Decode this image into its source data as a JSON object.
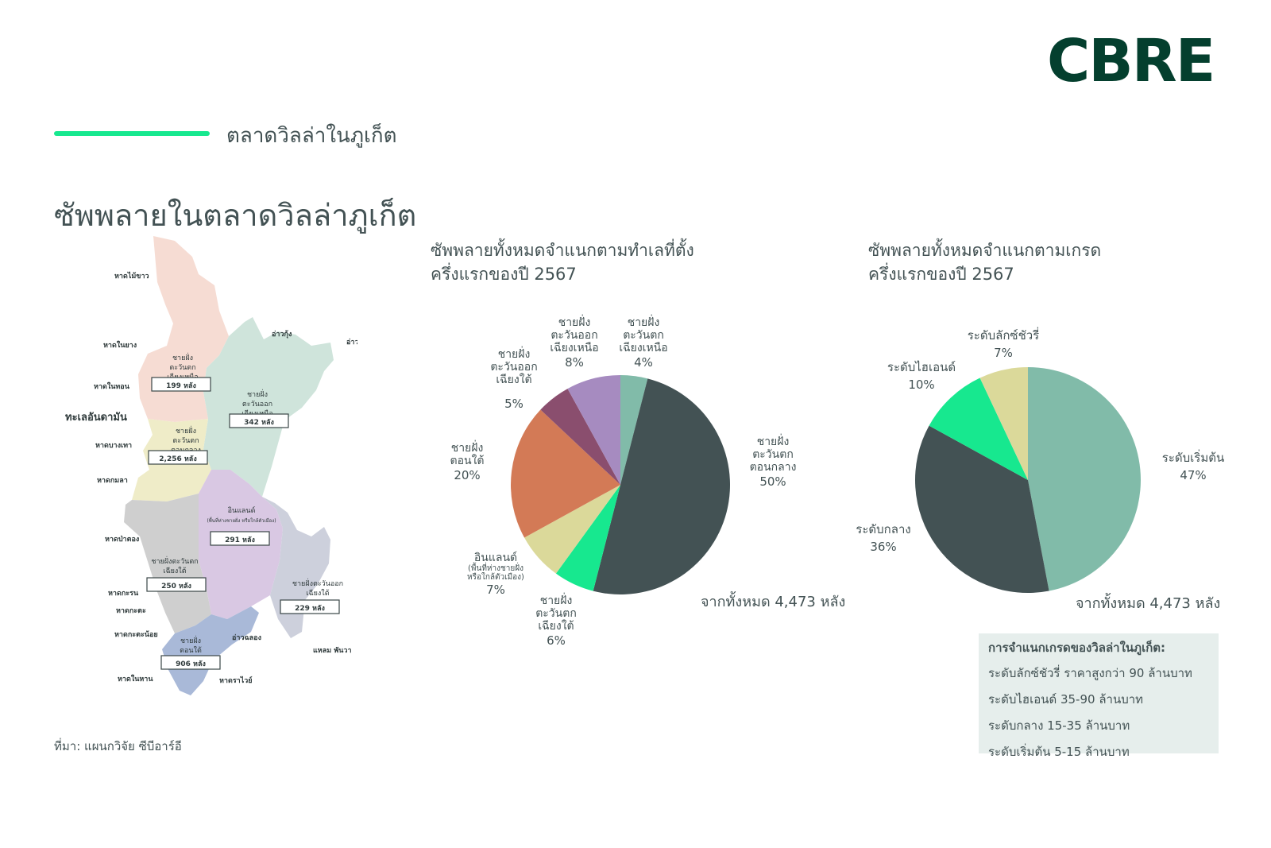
{
  "logo": "CBRE",
  "section_title": "ตลาดวิลล่าในภูเก็ต",
  "page_title": "ซัพพลายในตลาดวิลล่าภูเก็ต",
  "source": "ที่มา: แผนกวิจัย ซีบีอาร์อี",
  "map": {
    "sea_label": "ทะเลอันดามัน",
    "places": [
      "หาดไม้ขาว",
      "หาดในยาง",
      "หาดในทอน",
      "หาดบางเทา",
      "หาดกมลา",
      "หาดป่าตอง",
      "หาดกะรน",
      "หาดกะตะ",
      "หาดกะตะน้อย",
      "หาดในหาน",
      "หาดราไวย์",
      "อ่าวฉลอง",
      "แหลม พันวา",
      "อ่าวกุ้ง",
      "อ่าวปอ"
    ],
    "regions": [
      {
        "name": "ชายฝั่ง ตะวันตก เฉียงเหนือ",
        "count": "199 หลัง",
        "color": "#f6dcd3"
      },
      {
        "name": "ชายฝั่ง ตะวันออก เฉียงเหนือ",
        "count": "342 หลัง",
        "color": "#cfe4db"
      },
      {
        "name": "ชายฝั่ง ตะวันตก ตอนกลาง",
        "count": "2,256 หลัง",
        "color": "#efecc8"
      },
      {
        "name": "อินแลนด์",
        "note": "(พื้นที่ห่างชายฝั่ง หรือใกล้ตัวเมือง)",
        "count": "291 หลัง",
        "color": "#d9c8e3"
      },
      {
        "name": "ชายฝั่งตะวันตก เฉียงใต้",
        "count": "250 หลัง",
        "color": "#cfcfcf"
      },
      {
        "name": "ชายฝั่งตะวันออก เฉียงใต้",
        "count": "229 หลัง",
        "color": "#cdd0dc"
      },
      {
        "name": "ชายฝั่ง ตอนใต้",
        "count": "906 หลัง",
        "color": "#a9b9d8"
      }
    ]
  },
  "chart_data": [
    {
      "type": "pie",
      "title": "ซัพพลายทั้งหมดจำแนกตามทำเลที่ตั้ง\nครึ่งแรกของปี 2567",
      "total_label": "จากทั้งหมด 4,473 หลัง",
      "slices": [
        {
          "label": "ชายฝั่ง\nตะวันตก\nเฉียงเหนือ",
          "value": 4,
          "pct": "4%",
          "color": "#81bba9"
        },
        {
          "label": "ชายฝั่ง\nตะวันตก\nตอนกลาง",
          "value": 50,
          "pct": "50%",
          "color": "#435254"
        },
        {
          "label": "ชายฝั่ง\nตะวันตก\nเฉียงใต้",
          "value": 6,
          "pct": "6%",
          "color": "#17e88f"
        },
        {
          "label": "อินแลนด์",
          "note": "(พื้นที่ห่างชายฝั่ง\nหรือใกล้ตัวเมือง)",
          "value": 7,
          "pct": "7%",
          "color": "#dbd99a"
        },
        {
          "label": "ชายฝั่ง\nตอนใต้",
          "value": 20,
          "pct": "20%",
          "color": "#d37a56"
        },
        {
          "label": "ชายฝั่ง\nตะวันออก\nเฉียงใต้",
          "value": 5,
          "pct": "5%",
          "color": "#8a4e6e"
        },
        {
          "label": "ชายฝั่ง\nตะวันออก\nเฉียงเหนือ",
          "value": 8,
          "pct": "8%",
          "color": "#a68bc0"
        }
      ]
    },
    {
      "type": "pie",
      "title": "ซัพพลายทั้งหมดจำแนกตามเกรด\nครึ่งแรกของปี 2567",
      "total_label": "จากทั้งหมด 4,473 หลัง",
      "slices": [
        {
          "label": "ระดับเริ่มต้น",
          "value": 47,
          "pct": "47%",
          "color": "#81bba9"
        },
        {
          "label": "ระดับกลาง",
          "value": 36,
          "pct": "36%",
          "color": "#435254"
        },
        {
          "label": "ระดับไฮเอนด์",
          "value": 10,
          "pct": "10%",
          "color": "#17e88f"
        },
        {
          "label": "ระดับลักซ์ชัวรี่",
          "value": 7,
          "pct": "7%",
          "color": "#dbd99a"
        }
      ]
    }
  ],
  "legend": {
    "title": "การจำแนกเกรดของวิลล่าในภูเก็ต:",
    "items": [
      "ระดับลักซ์ชัวรี่ ราคาสูงกว่า 90 ล้านบาท",
      "ระดับไฮเอนด์ 35-90 ล้านบาท",
      "ระดับกลาง 15-35 ล้านบาท",
      "ระดับเริ่มต้น 5-15 ล้านบาท"
    ]
  }
}
